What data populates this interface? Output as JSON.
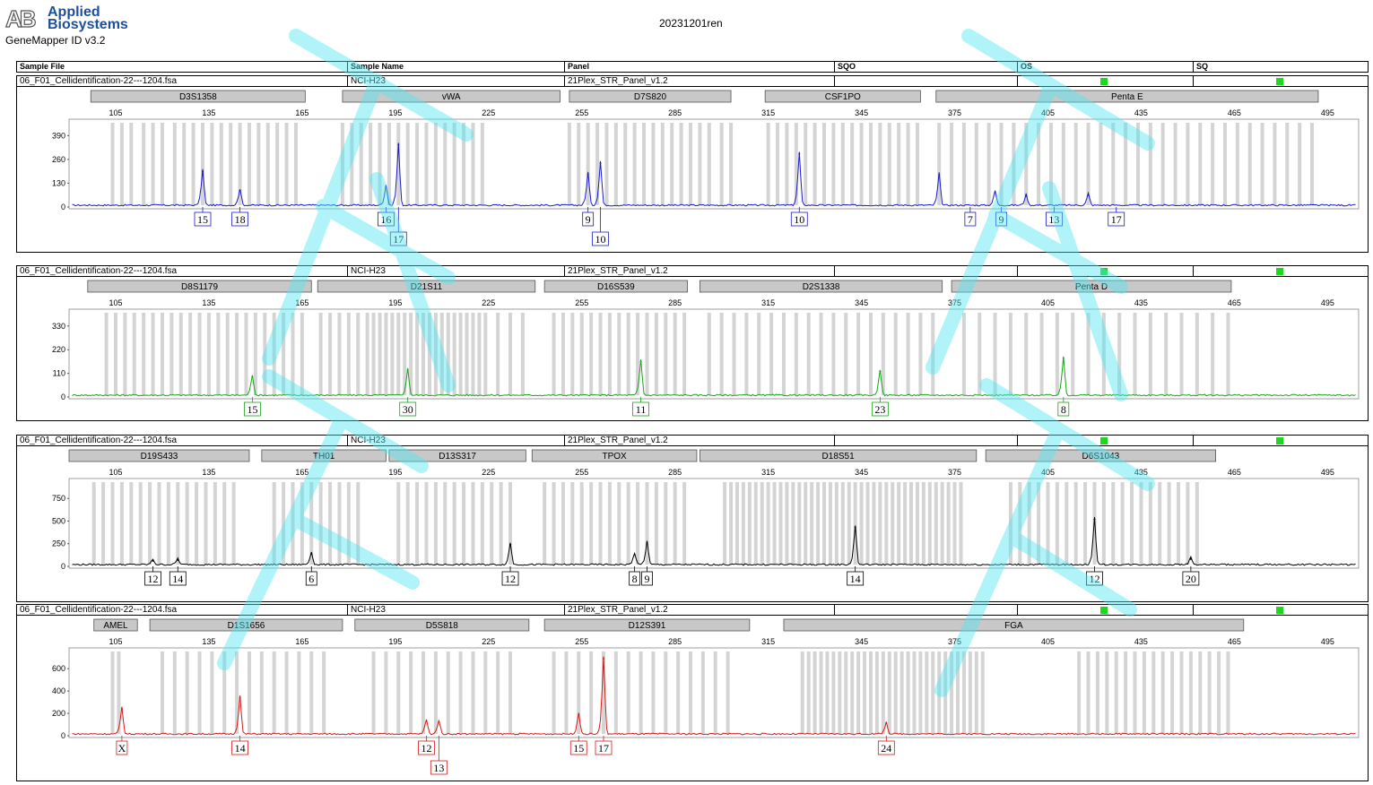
{
  "header": {
    "brand_line1": "Applied",
    "brand_line2": "Biosystems",
    "software": "GeneMapper ID v3.2",
    "run_title": "20231201ren",
    "columns": [
      "Sample File",
      "Sample Name",
      "Panel",
      "SQO",
      "OS",
      "SQ"
    ]
  },
  "colors": {
    "blue": "#1a1acc",
    "green": "#1aa31a",
    "black": "#000000",
    "red": "#d41a1a",
    "bin": "#d4d4d4",
    "status": "#1ed81e"
  },
  "chart_data": [
    {
      "type": "line",
      "dye": "blue",
      "sample_file": "06_F01_Cellidentification-22---1204.fsa",
      "sample_name": "NCI-H23",
      "panel": "21Plex_STR_Panel_v1.2",
      "x_ticks": [
        105,
        135,
        165,
        195,
        225,
        255,
        285,
        315,
        345,
        375,
        405,
        435,
        465,
        495
      ],
      "y_ticks": [
        390,
        260,
        130,
        0
      ],
      "xlim": [
        90,
        505
      ],
      "ylim": [
        0,
        470
      ],
      "markers": [
        {
          "name": "D3S1358",
          "start": 97,
          "end": 166
        },
        {
          "name": "vWA",
          "start": 178,
          "end": 248
        },
        {
          "name": "D7S820",
          "start": 251,
          "end": 303
        },
        {
          "name": "CSF1PO",
          "start": 314,
          "end": 364
        },
        {
          "name": "Penta E",
          "start": 369,
          "end": 492
        }
      ],
      "peaks": [
        {
          "allele": "15",
          "x": 133,
          "y": 195
        },
        {
          "allele": "18",
          "x": 145,
          "y": 90
        },
        {
          "allele": "16",
          "x": 192,
          "y": 110
        },
        {
          "allele": "17",
          "x": 196,
          "y": 340
        },
        {
          "allele": "9",
          "x": 257,
          "y": 180
        },
        {
          "allele": "10",
          "x": 261,
          "y": 240
        },
        {
          "allele": "10",
          "x": 325,
          "y": 290
        },
        {
          "allele": "7",
          "x": 370,
          "y": 175
        },
        {
          "allele": "9",
          "x": 388,
          "y": 80
        },
        {
          "allele": "13",
          "x": 398,
          "y": 60
        },
        {
          "allele": "17",
          "x": 418,
          "y": 65
        }
      ],
      "labels": [
        {
          "text": "15",
          "x": 133,
          "row": 0
        },
        {
          "text": "18",
          "x": 145,
          "row": 0
        },
        {
          "text": "16",
          "x": 192,
          "row": 0
        },
        {
          "text": "17",
          "x": 196,
          "row": 1
        },
        {
          "text": "9",
          "x": 257,
          "row": 0
        },
        {
          "text": "10",
          "x": 261,
          "row": 1
        },
        {
          "text": "10",
          "x": 325,
          "row": 0
        },
        {
          "text": "7",
          "x": 380,
          "row": 0
        },
        {
          "text": "9",
          "x": 390,
          "row": 0
        },
        {
          "text": "13",
          "x": 407,
          "row": 0
        },
        {
          "text": "17",
          "x": 427,
          "row": 0
        }
      ],
      "bins": [
        104,
        107,
        110,
        114,
        117,
        120,
        124,
        127,
        130,
        133,
        136,
        139,
        142,
        145,
        148,
        151,
        154,
        157,
        160,
        163,
        178,
        181,
        184,
        187,
        190,
        193,
        196,
        199,
        202,
        205,
        208,
        211,
        214,
        217,
        220,
        223,
        251,
        254,
        257,
        260,
        263,
        266,
        269,
        272,
        275,
        278,
        281,
        284,
        287,
        290,
        293,
        296,
        300,
        303,
        315,
        318,
        321,
        324,
        327,
        330,
        333,
        336,
        339,
        342,
        345,
        348,
        351,
        354,
        357,
        360,
        363,
        370,
        374,
        378,
        382,
        386,
        390,
        394,
        398,
        402,
        406,
        410,
        414,
        418,
        422,
        426,
        430,
        434,
        438,
        442,
        446,
        450,
        454,
        458,
        462,
        466,
        470,
        474,
        478,
        482,
        486,
        490
      ]
    },
    {
      "type": "line",
      "dye": "green",
      "sample_file": "06_F01_Cellidentification-22---1204.fsa",
      "sample_name": "NCI-H23",
      "panel": "21Plex_STR_Panel_v1.2",
      "x_ticks": [
        105,
        135,
        165,
        195,
        225,
        255,
        285,
        315,
        345,
        375,
        405,
        435,
        465,
        495
      ],
      "y_ticks": [
        330,
        220,
        110,
        0
      ],
      "xlim": [
        90,
        505
      ],
      "ylim": [
        0,
        400
      ],
      "markers": [
        {
          "name": "D8S1179",
          "start": 96,
          "end": 168
        },
        {
          "name": "D21S11",
          "start": 170,
          "end": 240
        },
        {
          "name": "D16S539",
          "start": 243,
          "end": 289
        },
        {
          "name": "D2S1338",
          "start": 293,
          "end": 371
        },
        {
          "name": "Penta D",
          "start": 374,
          "end": 464
        }
      ],
      "peaks": [
        {
          "allele": "15",
          "x": 149,
          "y": 95
        },
        {
          "allele": "30",
          "x": 199,
          "y": 125
        },
        {
          "allele": "11",
          "x": 274,
          "y": 165
        },
        {
          "allele": "23",
          "x": 351,
          "y": 120
        },
        {
          "allele": "8",
          "x": 410,
          "y": 180
        }
      ],
      "labels": [
        {
          "text": "15",
          "x": 149,
          "row": 0
        },
        {
          "text": "30",
          "x": 199,
          "row": 0
        },
        {
          "text": "11",
          "x": 274,
          "row": 0
        },
        {
          "text": "23",
          "x": 351,
          "row": 0
        },
        {
          "text": "8",
          "x": 410,
          "row": 0
        }
      ],
      "bins": [
        102,
        105,
        108,
        111,
        114,
        117,
        120,
        123,
        126,
        129,
        132,
        135,
        138,
        141,
        144,
        147,
        150,
        153,
        156,
        159,
        162,
        165,
        171,
        174,
        177,
        180,
        183,
        186,
        188,
        190,
        192,
        194,
        196,
        198,
        200,
        202,
        204,
        206,
        208,
        210,
        212,
        214,
        216,
        218,
        220,
        222,
        224,
        228,
        232,
        236,
        246,
        249,
        252,
        255,
        258,
        261,
        264,
        267,
        270,
        273,
        276,
        279,
        282,
        285,
        288,
        296,
        300,
        304,
        308,
        312,
        316,
        320,
        324,
        328,
        332,
        336,
        340,
        344,
        348,
        352,
        356,
        360,
        364,
        368,
        378,
        383,
        388,
        393,
        398,
        403,
        408,
        413,
        418,
        423,
        428,
        433,
        438,
        443,
        448,
        453,
        458,
        463
      ]
    },
    {
      "type": "line",
      "dye": "black",
      "sample_file": "06_F01_Cellidentification-22---1204.fsa",
      "sample_name": "NCI-H23",
      "panel": "21Plex_STR_Panel_v1.2",
      "x_ticks": [
        105,
        135,
        165,
        195,
        225,
        255,
        285,
        315,
        345,
        375,
        405,
        435,
        465,
        495
      ],
      "y_ticks": [
        750,
        500,
        250,
        0
      ],
      "xlim": [
        90,
        505
      ],
      "ylim": [
        0,
        950
      ],
      "markers": [
        {
          "name": "D19S433",
          "start": 90,
          "end": 148
        },
        {
          "name": "TH01",
          "start": 152,
          "end": 192
        },
        {
          "name": "D13S317",
          "start": 193,
          "end": 237
        },
        {
          "name": "TPOX",
          "start": 239,
          "end": 292
        },
        {
          "name": "D18S51",
          "start": 293,
          "end": 382
        },
        {
          "name": "D6S1043",
          "start": 385,
          "end": 459
        }
      ],
      "peaks": [
        {
          "allele": "12",
          "x": 117,
          "y": 60
        },
        {
          "allele": "14",
          "x": 125,
          "y": 70
        },
        {
          "allele": "6",
          "x": 168,
          "y": 140
        },
        {
          "allele": "12",
          "x": 232,
          "y": 240
        },
        {
          "allele": "8",
          "x": 272,
          "y": 130
        },
        {
          "allele": "9",
          "x": 276,
          "y": 260
        },
        {
          "allele": "14",
          "x": 343,
          "y": 430
        },
        {
          "allele": "12",
          "x": 420,
          "y": 520
        },
        {
          "allele": "20",
          "x": 451,
          "y": 80
        }
      ],
      "labels": [
        {
          "text": "12",
          "x": 117,
          "row": 0
        },
        {
          "text": "14",
          "x": 125,
          "row": 0
        },
        {
          "text": "6",
          "x": 168,
          "row": 0
        },
        {
          "text": "12",
          "x": 232,
          "row": 0
        },
        {
          "text": "8",
          "x": 272,
          "row": 0
        },
        {
          "text": "9",
          "x": 276,
          "row": 0
        },
        {
          "text": "14",
          "x": 343,
          "row": 0
        },
        {
          "text": "12",
          "x": 420,
          "row": 0
        },
        {
          "text": "20",
          "x": 451,
          "row": 0
        }
      ],
      "bins": [
        98,
        101,
        104,
        107,
        110,
        113,
        116,
        119,
        122,
        125,
        128,
        131,
        134,
        137,
        140,
        143,
        156,
        159,
        162,
        165,
        168,
        171,
        174,
        177,
        180,
        183,
        196,
        199,
        202,
        205,
        208,
        211,
        214,
        217,
        220,
        223,
        226,
        229,
        232,
        243,
        246,
        249,
        252,
        255,
        258,
        261,
        264,
        267,
        270,
        273,
        276,
        279,
        282,
        285,
        288,
        301,
        303,
        305,
        307,
        309,
        311,
        313,
        315,
        317,
        319,
        321,
        323,
        325,
        327,
        329,
        331,
        333,
        335,
        337,
        339,
        341,
        343,
        345,
        347,
        349,
        351,
        353,
        355,
        357,
        359,
        361,
        363,
        365,
        367,
        369,
        371,
        373,
        375,
        377,
        393,
        396,
        399,
        402,
        405,
        408,
        411,
        414,
        417,
        420,
        423,
        426,
        429,
        432,
        435,
        438,
        441,
        444,
        447,
        450,
        453
      ]
    },
    {
      "type": "line",
      "dye": "red",
      "sample_file": "06_F01_Cellidentification-22---1204.fsa",
      "sample_name": "NCI-H23",
      "panel": "21Plex_STR_Panel_v1.2",
      "x_ticks": [
        105,
        135,
        165,
        195,
        225,
        255,
        285,
        315,
        345,
        375,
        405,
        435,
        465,
        495
      ],
      "y_ticks": [
        600,
        400,
        200,
        0
      ],
      "xlim": [
        90,
        505
      ],
      "ylim": [
        0,
        770
      ],
      "markers": [
        {
          "name": "AMEL",
          "start": 98,
          "end": 112
        },
        {
          "name": "D1S1656",
          "start": 116,
          "end": 178
        },
        {
          "name": "D5S818",
          "start": 182,
          "end": 238
        },
        {
          "name": "D12S391",
          "start": 243,
          "end": 309
        },
        {
          "name": "FGA",
          "start": 320,
          "end": 468
        }
      ],
      "peaks": [
        {
          "allele": "X",
          "x": 107,
          "y": 240
        },
        {
          "allele": "14",
          "x": 145,
          "y": 340
        },
        {
          "allele": "12",
          "x": 205,
          "y": 130
        },
        {
          "allele": "13",
          "x": 209,
          "y": 125
        },
        {
          "allele": "15",
          "x": 254,
          "y": 190
        },
        {
          "allele": "17",
          "x": 262,
          "y": 690
        },
        {
          "allele": "24",
          "x": 353,
          "y": 110
        }
      ],
      "labels": [
        {
          "text": "X",
          "x": 107,
          "row": 0
        },
        {
          "text": "14",
          "x": 145,
          "row": 0
        },
        {
          "text": "12",
          "x": 205,
          "row": 0
        },
        {
          "text": "13",
          "x": 209,
          "row": 1
        },
        {
          "text": "15",
          "x": 254,
          "row": 0
        },
        {
          "text": "17",
          "x": 262,
          "row": 0
        },
        {
          "text": "24",
          "x": 353,
          "row": 0
        }
      ],
      "bins": [
        104,
        106,
        120,
        124,
        128,
        132,
        136,
        140,
        144,
        148,
        152,
        156,
        160,
        164,
        168,
        172,
        188,
        192,
        196,
        200,
        204,
        208,
        212,
        216,
        220,
        224,
        228,
        232,
        246,
        250,
        254,
        258,
        262,
        266,
        270,
        274,
        278,
        282,
        286,
        290,
        294,
        298,
        302,
        326,
        328,
        330,
        332,
        334,
        336,
        338,
        340,
        342,
        344,
        346,
        348,
        350,
        352,
        354,
        356,
        358,
        360,
        362,
        364,
        366,
        368,
        370,
        372,
        374,
        376,
        378,
        380,
        382,
        384,
        415,
        418,
        421,
        424,
        427,
        430,
        433,
        436,
        439,
        442,
        445,
        448,
        451,
        454,
        457,
        460,
        463
      ]
    }
  ]
}
